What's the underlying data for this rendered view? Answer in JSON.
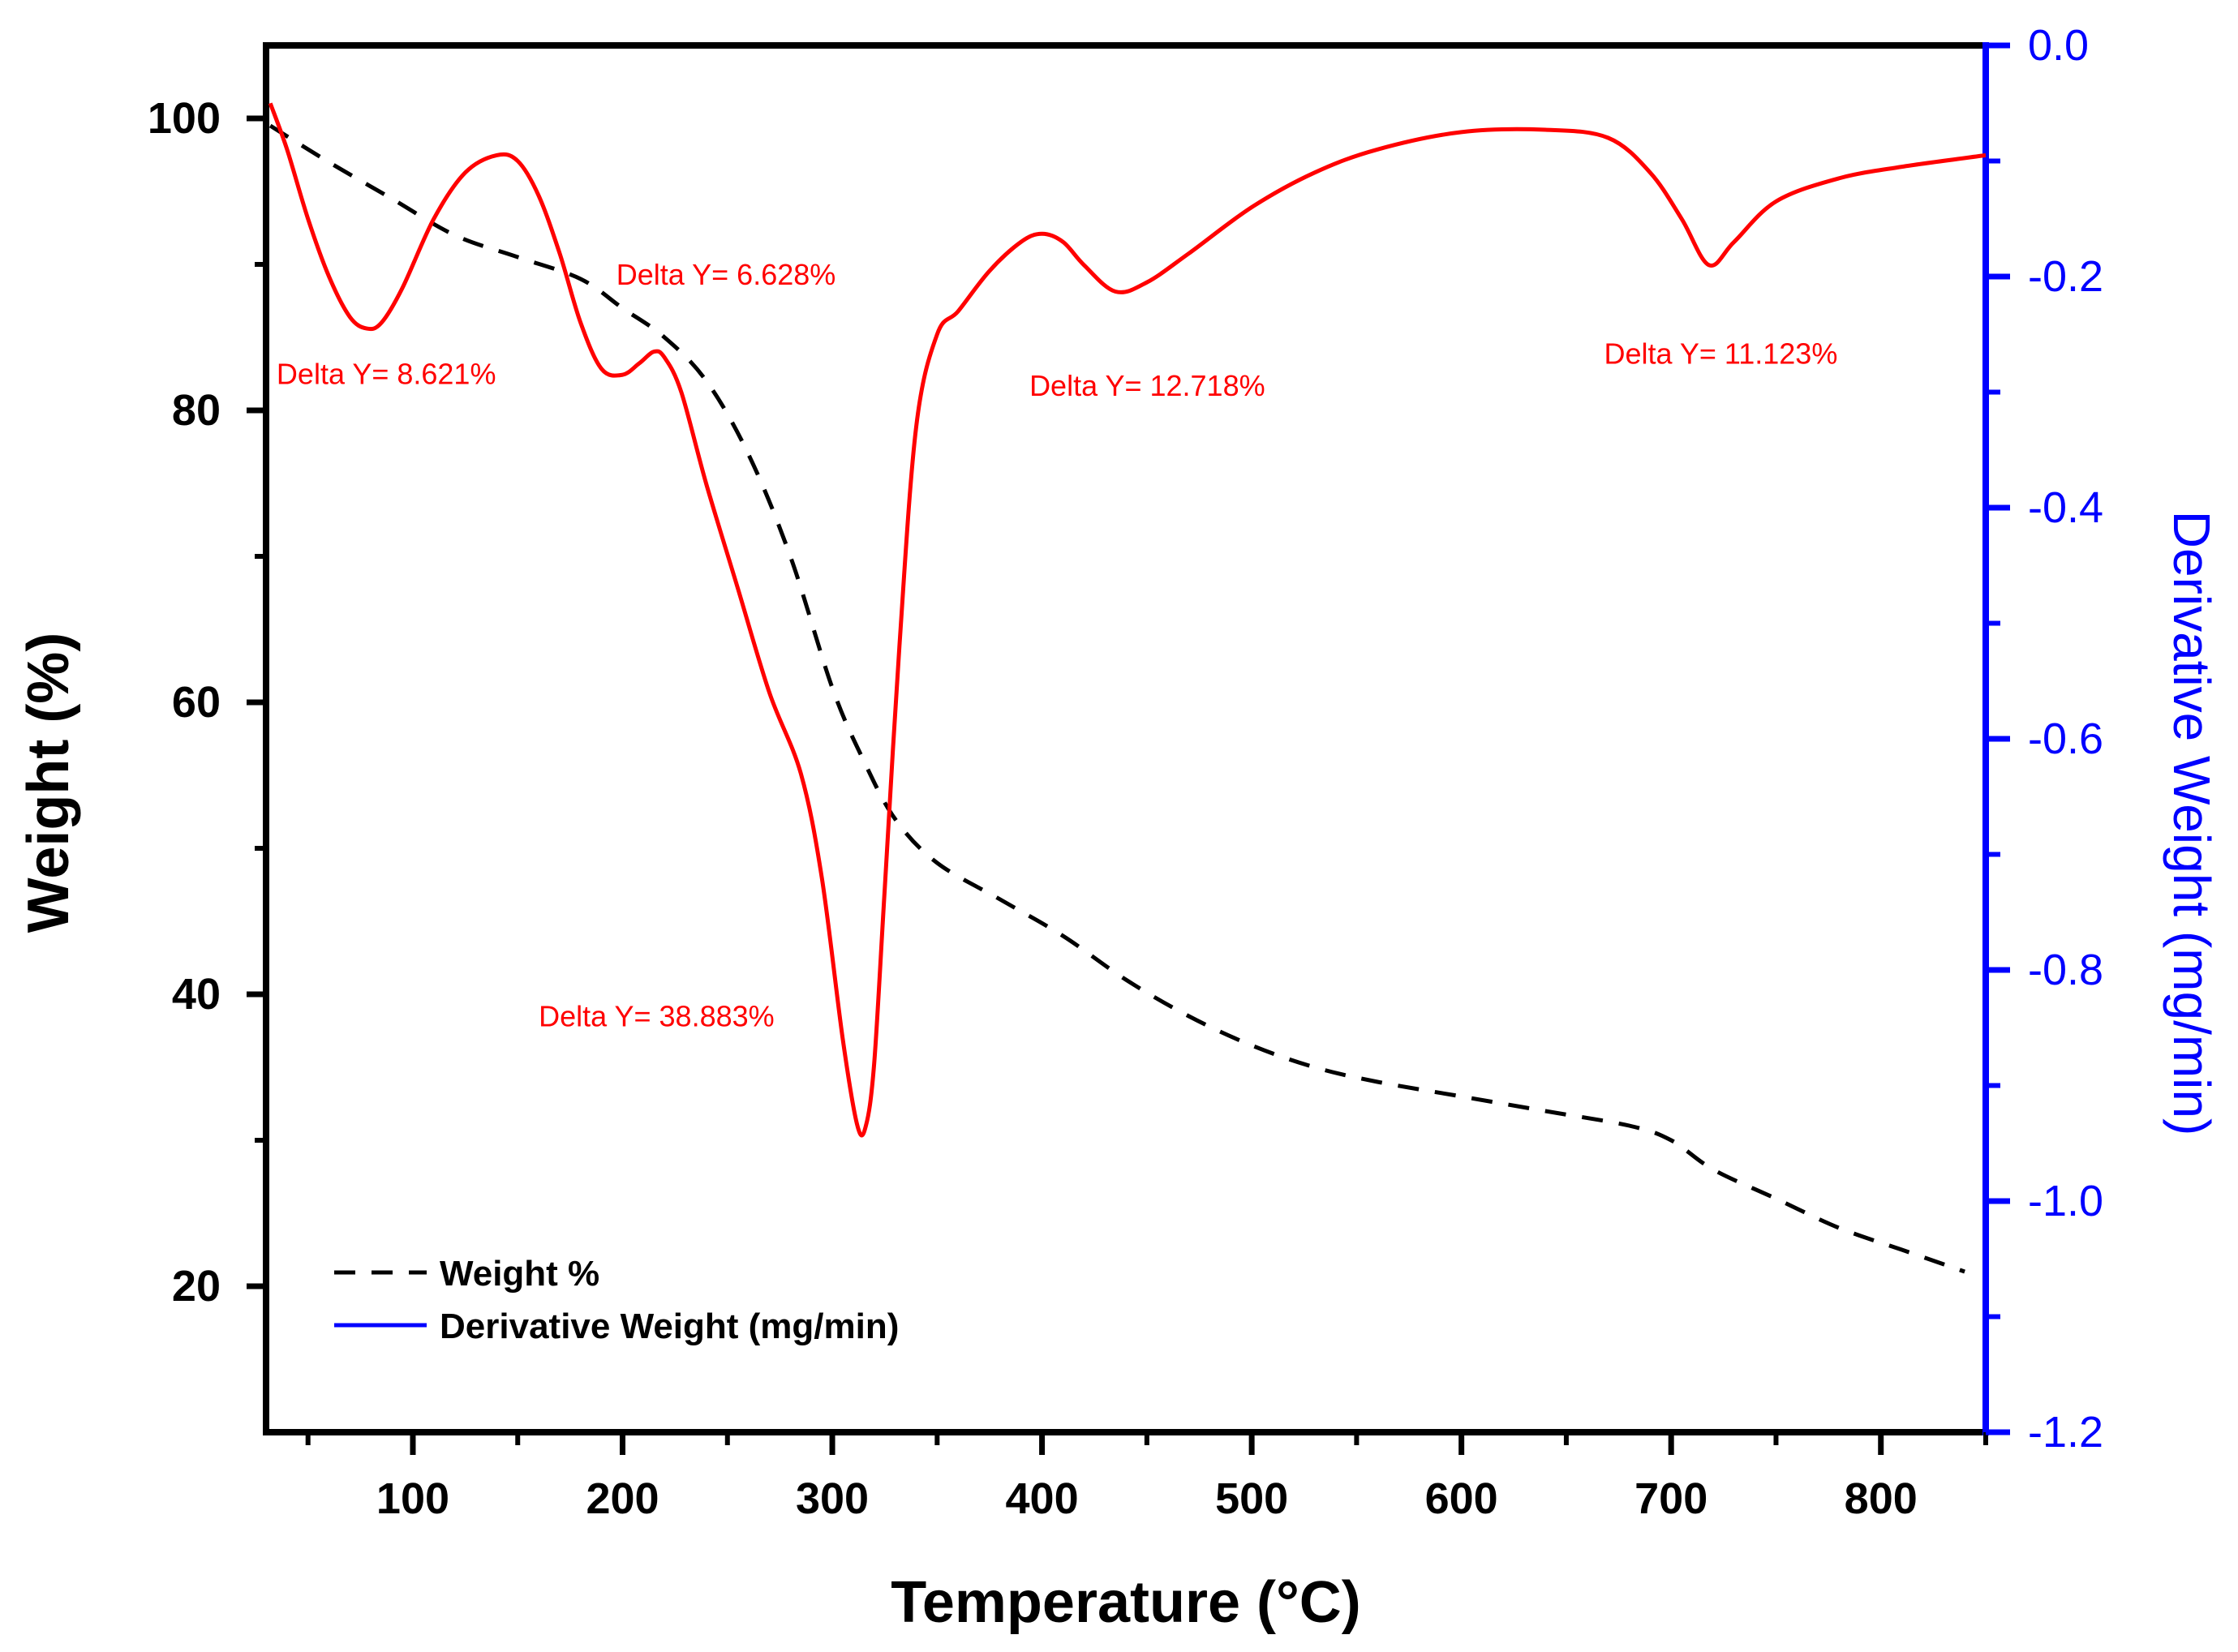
{
  "chart_data": {
    "type": "line",
    "xlabel": "Temperature (°C)",
    "ylabel": "Weight (%)",
    "y2label": "Derivative Weight (mg/min)",
    "xlim": [
      30,
      850
    ],
    "ylim": [
      10,
      105
    ],
    "y2lim": [
      -1.2,
      0.0
    ],
    "xticks": [
      100,
      200,
      300,
      400,
      500,
      600,
      700,
      800
    ],
    "xtick_labels": [
      "100",
      "200",
      "300",
      "400",
      "500",
      "600",
      "700",
      "800"
    ],
    "yticks": [
      20,
      40,
      60,
      80,
      100
    ],
    "ytick_labels": [
      "20",
      "40",
      "60",
      "80",
      "100"
    ],
    "y2ticks": [
      0.0,
      -0.2,
      -0.4,
      -0.6,
      -0.8,
      -1.0,
      -1.2
    ],
    "y2tick_labels": [
      "0.0",
      "-0.2",
      "-0.4",
      "-0.6",
      "-0.8",
      "-1.0",
      "-1.2"
    ],
    "colors": {
      "weight": "#000000",
      "derivative": "#ff0000",
      "legend_derivative": "#0000ff",
      "right_axis": "#0000ff",
      "annotation": "#ff0000"
    },
    "legend": {
      "position": "bottom-left",
      "entries": [
        "Weight %",
        "Derivative Weight (mg/min)"
      ]
    },
    "series": [
      {
        "name": "Weight %",
        "axis": "left",
        "style": "dashed",
        "x": [
          32,
          60,
          90,
          120,
          150,
          180,
          200,
          220,
          240,
          260,
          280,
          300,
          315,
          330,
          350,
          380,
          410,
          440,
          470,
          500,
          530,
          560,
          600,
          640,
          680,
          700,
          720,
          750,
          780,
          810,
          840
        ],
        "y": [
          99.5,
          97,
          94.5,
          92,
          90.5,
          89,
          87,
          85,
          82,
          77,
          70,
          61,
          56,
          52,
          49,
          46.5,
          44,
          41,
          38.5,
          36.5,
          35,
          34,
          33,
          32,
          31,
          30,
          28,
          26,
          24,
          22.5,
          21
        ]
      },
      {
        "name": "Derivative Weight (mg/min)",
        "axis": "right",
        "style": "solid",
        "x": [
          32,
          40,
          50,
          60,
          70,
          78,
          85,
          95,
          110,
          125,
          140,
          150,
          160,
          170,
          180,
          190,
          200,
          208,
          215,
          220,
          228,
          240,
          255,
          270,
          285,
          295,
          305,
          312,
          316,
          320,
          325,
          332,
          340,
          350,
          360,
          375,
          390,
          400,
          410,
          420,
          435,
          450,
          470,
          500,
          530,
          560,
          600,
          640,
          670,
          690,
          705,
          718,
          730,
          750,
          780,
          810,
          850
        ],
        "y": [
          -0.05,
          -0.09,
          -0.15,
          -0.2,
          -0.235,
          -0.245,
          -0.24,
          -0.21,
          -0.15,
          -0.11,
          -0.095,
          -0.1,
          -0.13,
          -0.18,
          -0.24,
          -0.28,
          -0.285,
          -0.275,
          -0.265,
          -0.27,
          -0.3,
          -0.38,
          -0.47,
          -0.56,
          -0.63,
          -0.72,
          -0.86,
          -0.935,
          -0.935,
          -0.88,
          -0.73,
          -0.52,
          -0.33,
          -0.25,
          -0.23,
          -0.195,
          -0.17,
          -0.163,
          -0.17,
          -0.19,
          -0.213,
          -0.205,
          -0.18,
          -0.14,
          -0.11,
          -0.09,
          -0.075,
          -0.073,
          -0.08,
          -0.11,
          -0.15,
          -0.19,
          -0.17,
          -0.135,
          -0.115,
          -0.105,
          -0.095
        ]
      }
    ],
    "annotations": [
      {
        "text": "Delta Y= 8.621%",
        "x": 35,
        "y": 81.8
      },
      {
        "text": "Delta Y= 6.628%",
        "x": 197,
        "y": 88.6
      },
      {
        "text": "Delta Y= 38.883%",
        "x": 160,
        "y": 37.8
      },
      {
        "text": "Delta Y= 12.718%",
        "x": 394,
        "y": 81
      },
      {
        "text": "Delta Y= 11.123%",
        "x": 668,
        "y": 83.2
      }
    ]
  }
}
